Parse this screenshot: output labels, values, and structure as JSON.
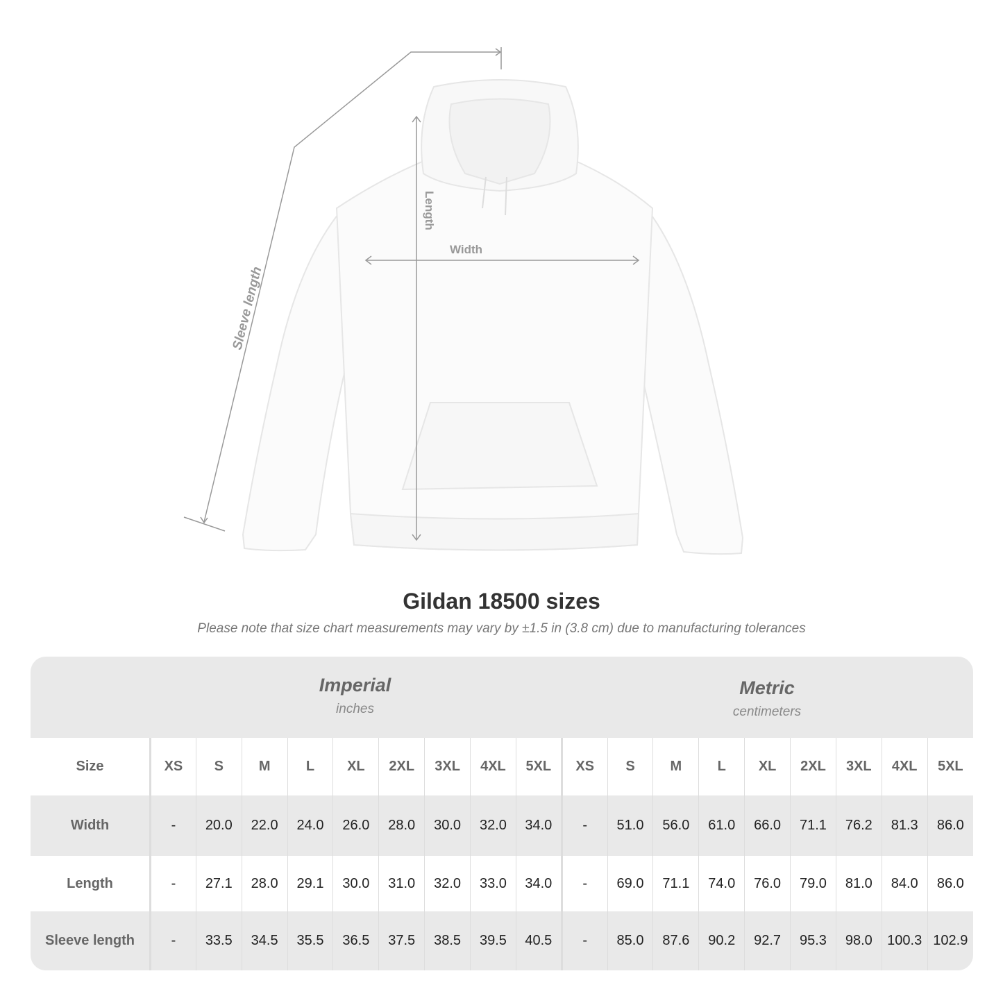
{
  "diagram": {
    "labels": {
      "sleeve": "Sleeve length",
      "length": "Length",
      "width": "Width"
    },
    "line_color": "#999999"
  },
  "title": "Gildan 18500 sizes",
  "subtitle": "Please note that size chart measurements may vary by ±1.5 in (3.8 cm) due to manufacturing tolerances",
  "table": {
    "imperial": {
      "name": "Imperial",
      "unit": "inches"
    },
    "metric": {
      "name": "Metric",
      "unit": "centimeters"
    },
    "size_label": "Size",
    "sizes": [
      "XS",
      "S",
      "M",
      "L",
      "XL",
      "2XL",
      "3XL",
      "4XL",
      "5XL"
    ],
    "rows": [
      {
        "label": "Width",
        "imperial": [
          "-",
          "20.0",
          "22.0",
          "24.0",
          "26.0",
          "28.0",
          "30.0",
          "32.0",
          "34.0"
        ],
        "metric": [
          "-",
          "51.0",
          "56.0",
          "61.0",
          "66.0",
          "71.1",
          "76.2",
          "81.3",
          "86.0"
        ]
      },
      {
        "label": "Length",
        "imperial": [
          "-",
          "27.1",
          "28.0",
          "29.1",
          "30.0",
          "31.0",
          "32.0",
          "33.0",
          "34.0"
        ],
        "metric": [
          "-",
          "69.0",
          "71.1",
          "74.0",
          "76.0",
          "79.0",
          "81.0",
          "84.0",
          "86.0"
        ]
      },
      {
        "label": "Sleeve length",
        "imperial": [
          "-",
          "33.5",
          "34.5",
          "35.5",
          "36.5",
          "37.5",
          "38.5",
          "39.5",
          "40.5"
        ],
        "metric": [
          "-",
          "85.0",
          "87.6",
          "90.2",
          "92.7",
          "95.3",
          "98.0",
          "100.3",
          "102.9"
        ]
      }
    ],
    "colors": {
      "band": "#e9e9e9",
      "label": "#666666"
    }
  }
}
